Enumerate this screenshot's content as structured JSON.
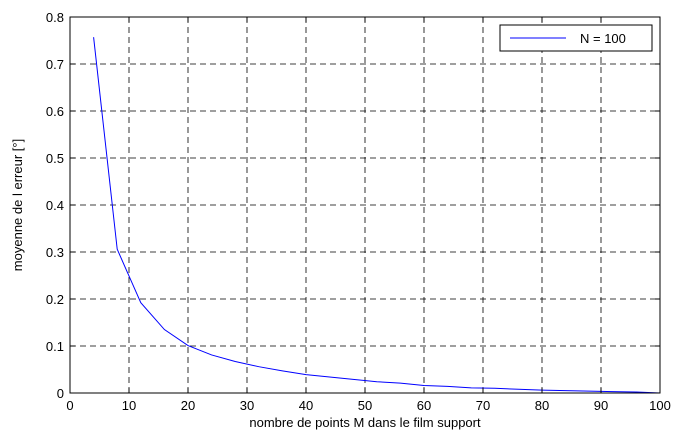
{
  "chart_data": {
    "type": "line",
    "xlabel": "nombre de points M dans le film support",
    "ylabel": "moyenne de l erreur [°]",
    "xlim": [
      0,
      100
    ],
    "ylim": [
      0,
      0.8
    ],
    "xticks": [
      0,
      10,
      20,
      30,
      40,
      50,
      60,
      70,
      80,
      90,
      100
    ],
    "yticks": [
      0,
      0.1,
      0.2,
      0.3,
      0.4,
      0.5,
      0.6,
      0.7,
      0.8
    ],
    "grid": true,
    "legend_position": "top-right",
    "series": [
      {
        "name": "N = 100",
        "color": "#0000ff",
        "x": [
          4,
          8,
          12,
          16,
          20,
          24,
          28,
          32,
          36,
          40,
          44,
          48,
          52,
          56,
          60,
          64,
          68,
          72,
          76,
          80,
          84,
          88,
          92,
          96,
          100
        ],
        "y": [
          0.757,
          0.306,
          0.192,
          0.135,
          0.101,
          0.081,
          0.067,
          0.056,
          0.047,
          0.039,
          0.034,
          0.029,
          0.024,
          0.021,
          0.016,
          0.014,
          0.011,
          0.01,
          0.008,
          0.006,
          0.005,
          0.004,
          0.003,
          0.002,
          0.0
        ]
      }
    ]
  }
}
